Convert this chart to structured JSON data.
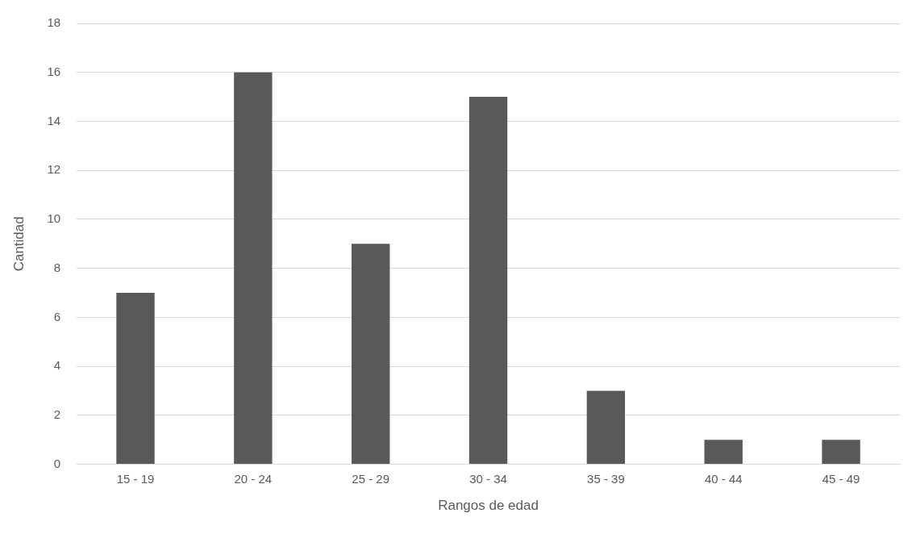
{
  "chart_data": {
    "type": "bar",
    "xlabel": "Rangos de edad",
    "ylabel": "Cantidad",
    "categories": [
      "15 - 19",
      "20 - 24",
      "25 - 29",
      "30 - 34",
      "35 - 39",
      "40 - 44",
      "45 - 49"
    ],
    "values": [
      7,
      16,
      9,
      15,
      3,
      1,
      1
    ],
    "color": "#595959",
    "ylim": [
      0,
      18
    ],
    "yticks": [
      0,
      2,
      4,
      6,
      8,
      10,
      12,
      14,
      16,
      18
    ],
    "grid": "y"
  }
}
